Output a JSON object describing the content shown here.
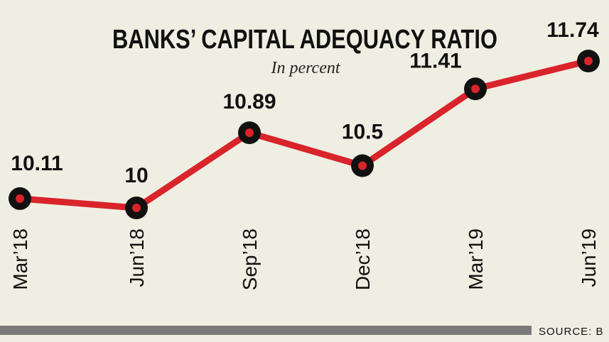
{
  "chart_data": {
    "type": "line",
    "title": "BANKS’ CAPITAL ADEQUACY  RATIO",
    "subtitle": "In percent",
    "categories": [
      "Mar’18",
      "Jun’18",
      "Sep’18",
      "Dec’18",
      "Mar’19",
      "Jun’19"
    ],
    "series": [
      {
        "name": null,
        "color": "#d9242b",
        "values": [
          10.11,
          10,
          10.89,
          10.5,
          11.41,
          11.74
        ]
      }
    ],
    "source": "SOURCE: B"
  }
}
